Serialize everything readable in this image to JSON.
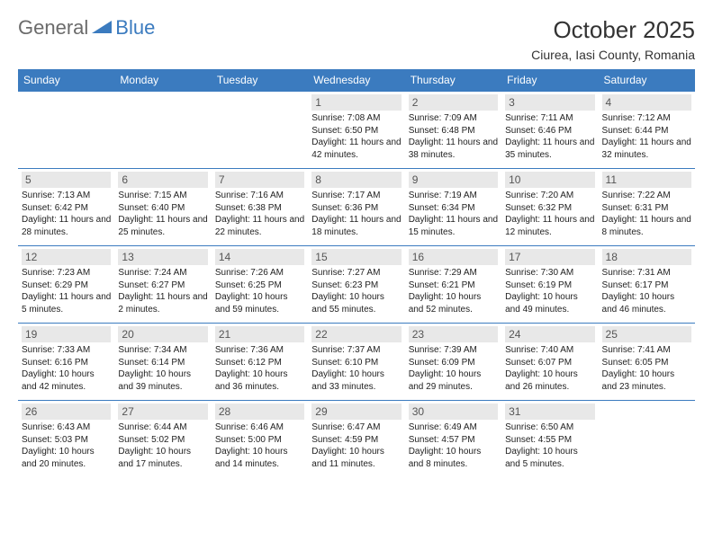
{
  "logo": {
    "text1": "General",
    "text2": "Blue"
  },
  "title": "October 2025",
  "location": "Ciurea, Iasi County, Romania",
  "columns": [
    "Sunday",
    "Monday",
    "Tuesday",
    "Wednesday",
    "Thursday",
    "Friday",
    "Saturday"
  ],
  "header_bg": "#3b7bbf",
  "header_fg": "#ffffff",
  "border_color": "#3b7bbf",
  "daynum_bg": "#e8e8e8",
  "weeks": [
    [
      {
        "day": "",
        "sunrise": "",
        "sunset": "",
        "daylight": ""
      },
      {
        "day": "",
        "sunrise": "",
        "sunset": "",
        "daylight": ""
      },
      {
        "day": "",
        "sunrise": "",
        "sunset": "",
        "daylight": ""
      },
      {
        "day": "1",
        "sunrise": "Sunrise: 7:08 AM",
        "sunset": "Sunset: 6:50 PM",
        "daylight": "Daylight: 11 hours and 42 minutes."
      },
      {
        "day": "2",
        "sunrise": "Sunrise: 7:09 AM",
        "sunset": "Sunset: 6:48 PM",
        "daylight": "Daylight: 11 hours and 38 minutes."
      },
      {
        "day": "3",
        "sunrise": "Sunrise: 7:11 AM",
        "sunset": "Sunset: 6:46 PM",
        "daylight": "Daylight: 11 hours and 35 minutes."
      },
      {
        "day": "4",
        "sunrise": "Sunrise: 7:12 AM",
        "sunset": "Sunset: 6:44 PM",
        "daylight": "Daylight: 11 hours and 32 minutes."
      }
    ],
    [
      {
        "day": "5",
        "sunrise": "Sunrise: 7:13 AM",
        "sunset": "Sunset: 6:42 PM",
        "daylight": "Daylight: 11 hours and 28 minutes."
      },
      {
        "day": "6",
        "sunrise": "Sunrise: 7:15 AM",
        "sunset": "Sunset: 6:40 PM",
        "daylight": "Daylight: 11 hours and 25 minutes."
      },
      {
        "day": "7",
        "sunrise": "Sunrise: 7:16 AM",
        "sunset": "Sunset: 6:38 PM",
        "daylight": "Daylight: 11 hours and 22 minutes."
      },
      {
        "day": "8",
        "sunrise": "Sunrise: 7:17 AM",
        "sunset": "Sunset: 6:36 PM",
        "daylight": "Daylight: 11 hours and 18 minutes."
      },
      {
        "day": "9",
        "sunrise": "Sunrise: 7:19 AM",
        "sunset": "Sunset: 6:34 PM",
        "daylight": "Daylight: 11 hours and 15 minutes."
      },
      {
        "day": "10",
        "sunrise": "Sunrise: 7:20 AM",
        "sunset": "Sunset: 6:32 PM",
        "daylight": "Daylight: 11 hours and 12 minutes."
      },
      {
        "day": "11",
        "sunrise": "Sunrise: 7:22 AM",
        "sunset": "Sunset: 6:31 PM",
        "daylight": "Daylight: 11 hours and 8 minutes."
      }
    ],
    [
      {
        "day": "12",
        "sunrise": "Sunrise: 7:23 AM",
        "sunset": "Sunset: 6:29 PM",
        "daylight": "Daylight: 11 hours and 5 minutes."
      },
      {
        "day": "13",
        "sunrise": "Sunrise: 7:24 AM",
        "sunset": "Sunset: 6:27 PM",
        "daylight": "Daylight: 11 hours and 2 minutes."
      },
      {
        "day": "14",
        "sunrise": "Sunrise: 7:26 AM",
        "sunset": "Sunset: 6:25 PM",
        "daylight": "Daylight: 10 hours and 59 minutes."
      },
      {
        "day": "15",
        "sunrise": "Sunrise: 7:27 AM",
        "sunset": "Sunset: 6:23 PM",
        "daylight": "Daylight: 10 hours and 55 minutes."
      },
      {
        "day": "16",
        "sunrise": "Sunrise: 7:29 AM",
        "sunset": "Sunset: 6:21 PM",
        "daylight": "Daylight: 10 hours and 52 minutes."
      },
      {
        "day": "17",
        "sunrise": "Sunrise: 7:30 AM",
        "sunset": "Sunset: 6:19 PM",
        "daylight": "Daylight: 10 hours and 49 minutes."
      },
      {
        "day": "18",
        "sunrise": "Sunrise: 7:31 AM",
        "sunset": "Sunset: 6:17 PM",
        "daylight": "Daylight: 10 hours and 46 minutes."
      }
    ],
    [
      {
        "day": "19",
        "sunrise": "Sunrise: 7:33 AM",
        "sunset": "Sunset: 6:16 PM",
        "daylight": "Daylight: 10 hours and 42 minutes."
      },
      {
        "day": "20",
        "sunrise": "Sunrise: 7:34 AM",
        "sunset": "Sunset: 6:14 PM",
        "daylight": "Daylight: 10 hours and 39 minutes."
      },
      {
        "day": "21",
        "sunrise": "Sunrise: 7:36 AM",
        "sunset": "Sunset: 6:12 PM",
        "daylight": "Daylight: 10 hours and 36 minutes."
      },
      {
        "day": "22",
        "sunrise": "Sunrise: 7:37 AM",
        "sunset": "Sunset: 6:10 PM",
        "daylight": "Daylight: 10 hours and 33 minutes."
      },
      {
        "day": "23",
        "sunrise": "Sunrise: 7:39 AM",
        "sunset": "Sunset: 6:09 PM",
        "daylight": "Daylight: 10 hours and 29 minutes."
      },
      {
        "day": "24",
        "sunrise": "Sunrise: 7:40 AM",
        "sunset": "Sunset: 6:07 PM",
        "daylight": "Daylight: 10 hours and 26 minutes."
      },
      {
        "day": "25",
        "sunrise": "Sunrise: 7:41 AM",
        "sunset": "Sunset: 6:05 PM",
        "daylight": "Daylight: 10 hours and 23 minutes."
      }
    ],
    [
      {
        "day": "26",
        "sunrise": "Sunrise: 6:43 AM",
        "sunset": "Sunset: 5:03 PM",
        "daylight": "Daylight: 10 hours and 20 minutes."
      },
      {
        "day": "27",
        "sunrise": "Sunrise: 6:44 AM",
        "sunset": "Sunset: 5:02 PM",
        "daylight": "Daylight: 10 hours and 17 minutes."
      },
      {
        "day": "28",
        "sunrise": "Sunrise: 6:46 AM",
        "sunset": "Sunset: 5:00 PM",
        "daylight": "Daylight: 10 hours and 14 minutes."
      },
      {
        "day": "29",
        "sunrise": "Sunrise: 6:47 AM",
        "sunset": "Sunset: 4:59 PM",
        "daylight": "Daylight: 10 hours and 11 minutes."
      },
      {
        "day": "30",
        "sunrise": "Sunrise: 6:49 AM",
        "sunset": "Sunset: 4:57 PM",
        "daylight": "Daylight: 10 hours and 8 minutes."
      },
      {
        "day": "31",
        "sunrise": "Sunrise: 6:50 AM",
        "sunset": "Sunset: 4:55 PM",
        "daylight": "Daylight: 10 hours and 5 minutes."
      },
      {
        "day": "",
        "sunrise": "",
        "sunset": "",
        "daylight": ""
      }
    ]
  ]
}
